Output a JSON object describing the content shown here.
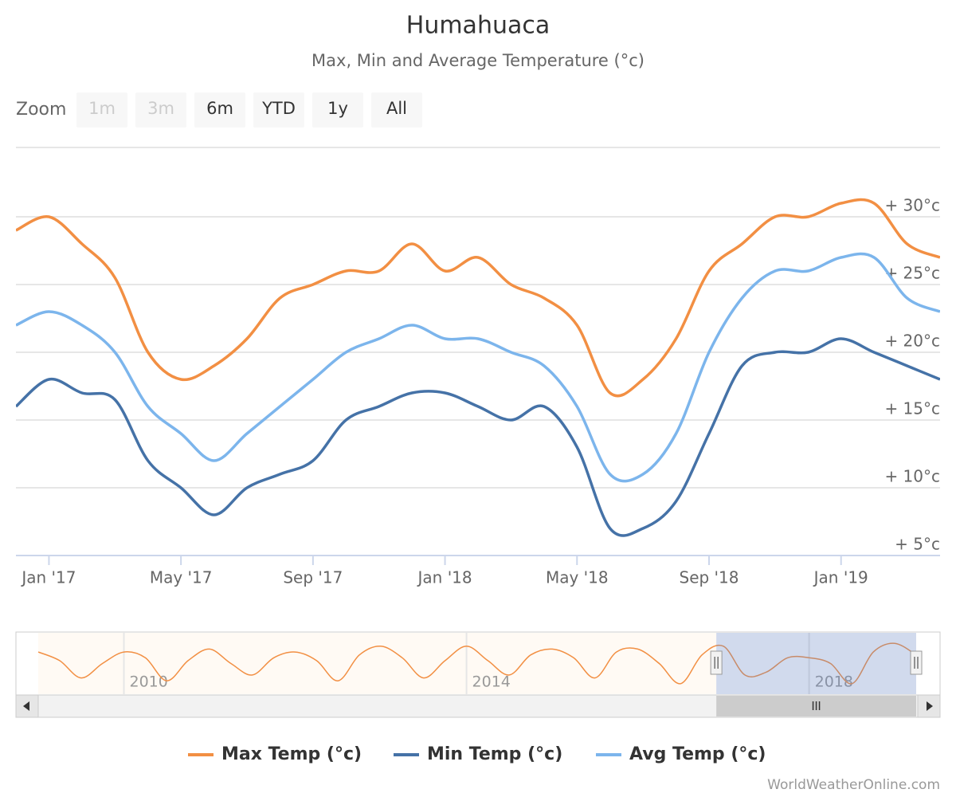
{
  "chart_data": {
    "type": "line",
    "title": "Humahuaca",
    "subtitle": "Max, Min and Average Temperature (°c)",
    "zoom": {
      "label": "Zoom",
      "buttons": [
        {
          "text": "1m",
          "enabled": false
        },
        {
          "text": "3m",
          "enabled": false
        },
        {
          "text": "6m",
          "enabled": true
        },
        {
          "text": "YTD",
          "enabled": true
        },
        {
          "text": "1y",
          "enabled": true
        },
        {
          "text": "All",
          "enabled": true
        }
      ]
    },
    "x": [
      "2016-12",
      "2017-01",
      "2017-02",
      "2017-03",
      "2017-04",
      "2017-05",
      "2017-06",
      "2017-07",
      "2017-08",
      "2017-09",
      "2017-10",
      "2017-11",
      "2017-12",
      "2018-01",
      "2018-02",
      "2018-03",
      "2018-04",
      "2018-05",
      "2018-06",
      "2018-07",
      "2018-08",
      "2018-09",
      "2018-10",
      "2018-11",
      "2018-12",
      "2019-01",
      "2019-02",
      "2019-03",
      "2019-04"
    ],
    "xlim": [
      "2016-12",
      "2019-04"
    ],
    "xticks": [
      {
        "value": "2017-01",
        "label": "Jan '17"
      },
      {
        "value": "2017-05",
        "label": "May '17"
      },
      {
        "value": "2017-09",
        "label": "Sep '17"
      },
      {
        "value": "2018-01",
        "label": "Jan '18"
      },
      {
        "value": "2018-05",
        "label": "May '18"
      },
      {
        "value": "2018-09",
        "label": "Sep '18"
      },
      {
        "value": "2019-01",
        "label": "Jan '19"
      }
    ],
    "ylim": [
      5,
      35
    ],
    "yticks": [
      {
        "value": 5,
        "label": "+ 5°c"
      },
      {
        "value": 10,
        "label": "+ 10°c"
      },
      {
        "value": 15,
        "label": "+ 15°c"
      },
      {
        "value": 20,
        "label": "+ 20°c"
      },
      {
        "value": 25,
        "label": "+ 25°c"
      },
      {
        "value": 30,
        "label": "+ 30°c"
      }
    ],
    "grid": true,
    "series": [
      {
        "name": "Max Temp (°c)",
        "color": "#f28f43",
        "values": [
          29,
          30,
          28,
          25.5,
          20,
          18,
          19,
          21,
          24,
          25,
          26,
          26,
          28,
          26,
          27,
          25,
          24,
          22,
          17,
          18,
          21,
          26,
          28,
          30,
          30,
          31,
          31,
          28,
          27
        ]
      },
      {
        "name": "Min Temp (°c)",
        "color": "#4572a7",
        "values": [
          16,
          18,
          17,
          16.5,
          12,
          10,
          8,
          10,
          11,
          12,
          15,
          16,
          17,
          17,
          16,
          15,
          16,
          13,
          7,
          7,
          9,
          14,
          19,
          20,
          20,
          21,
          20,
          19,
          18
        ]
      },
      {
        "name": "Avg Temp (°c)",
        "color": "#7cb5ec",
        "values": [
          22,
          23,
          22,
          20,
          16,
          14,
          12,
          14,
          16,
          18,
          20,
          21,
          22,
          21,
          21,
          20,
          19,
          16,
          11,
          11,
          14,
          20,
          24,
          26,
          26,
          27,
          27,
          24,
          23
        ]
      }
    ],
    "navigator": {
      "color": "#f28f43",
      "x": [
        "2009-01",
        "2009-04",
        "2009-07",
        "2009-10",
        "2010-01",
        "2010-04",
        "2010-07",
        "2010-10",
        "2011-01",
        "2011-04",
        "2011-07",
        "2011-10",
        "2012-01",
        "2012-04",
        "2012-07",
        "2012-10",
        "2013-01",
        "2013-04",
        "2013-07",
        "2013-10",
        "2014-01",
        "2014-04",
        "2014-07",
        "2014-10",
        "2015-01",
        "2015-04",
        "2015-07",
        "2015-10",
        "2016-01",
        "2016-04",
        "2016-07",
        "2016-10",
        "2017-01",
        "2017-04",
        "2017-07",
        "2017-10",
        "2018-01",
        "2018-04",
        "2018-07",
        "2018-10",
        "2019-01",
        "2019-04"
      ],
      "values": [
        28,
        25,
        19,
        24,
        28,
        26,
        18,
        25,
        29,
        24,
        20,
        26,
        28,
        25,
        18,
        27,
        30,
        26,
        19,
        25,
        30,
        25,
        20,
        27,
        29,
        26,
        19,
        28,
        29,
        24,
        17,
        27,
        30,
        20,
        21,
        26,
        26,
        24,
        17,
        28,
        31,
        27
      ],
      "xlim": [
        "2009-01",
        "2019-04"
      ],
      "ylim": [
        15,
        33
      ],
      "xticks": [
        {
          "value": "2010-01",
          "label": "2010"
        },
        {
          "value": "2014-01",
          "label": "2014"
        },
        {
          "value": "2018-01",
          "label": "2018"
        }
      ],
      "selection": [
        "2016-12",
        "2019-04"
      ]
    },
    "credits": "WorldWeatherOnline.com"
  }
}
